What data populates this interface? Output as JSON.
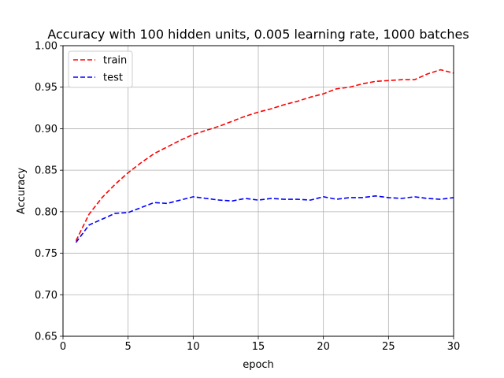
{
  "chart_data": {
    "type": "line",
    "title": "Accuracy with 100 hidden units, 0.005 learning rate, 1000 batches",
    "xlabel": "epoch",
    "ylabel": "Accuracy",
    "xlim": [
      0,
      30
    ],
    "ylim": [
      0.65,
      1.0
    ],
    "x_ticks": [
      0,
      5,
      10,
      15,
      20,
      25,
      30
    ],
    "y_ticks": [
      0.65,
      0.7,
      0.75,
      0.8,
      0.85,
      0.9,
      0.95,
      1.0
    ],
    "grid": true,
    "legend_position": "top-left",
    "x": [
      1,
      2,
      3,
      4,
      5,
      6,
      7,
      8,
      9,
      10,
      11,
      12,
      13,
      14,
      15,
      16,
      17,
      18,
      19,
      20,
      21,
      22,
      23,
      24,
      25,
      26,
      27,
      28,
      29,
      30
    ],
    "series": [
      {
        "name": "train",
        "color": "#ff0000",
        "dash": "dashed",
        "values": [
          0.765,
          0.797,
          0.817,
          0.833,
          0.847,
          0.859,
          0.87,
          0.878,
          0.886,
          0.893,
          0.898,
          0.903,
          0.909,
          0.915,
          0.92,
          0.924,
          0.929,
          0.933,
          0.938,
          0.942,
          0.948,
          0.95,
          0.954,
          0.957,
          0.958,
          0.959,
          0.959,
          0.966,
          0.971,
          0.967
        ]
      },
      {
        "name": "test",
        "color": "#0000ff",
        "dash": "dashed",
        "values": [
          0.763,
          0.784,
          0.791,
          0.798,
          0.799,
          0.805,
          0.811,
          0.81,
          0.814,
          0.818,
          0.816,
          0.814,
          0.813,
          0.816,
          0.814,
          0.816,
          0.815,
          0.815,
          0.814,
          0.818,
          0.815,
          0.817,
          0.817,
          0.819,
          0.817,
          0.816,
          0.818,
          0.816,
          0.815,
          0.817
        ]
      }
    ]
  }
}
